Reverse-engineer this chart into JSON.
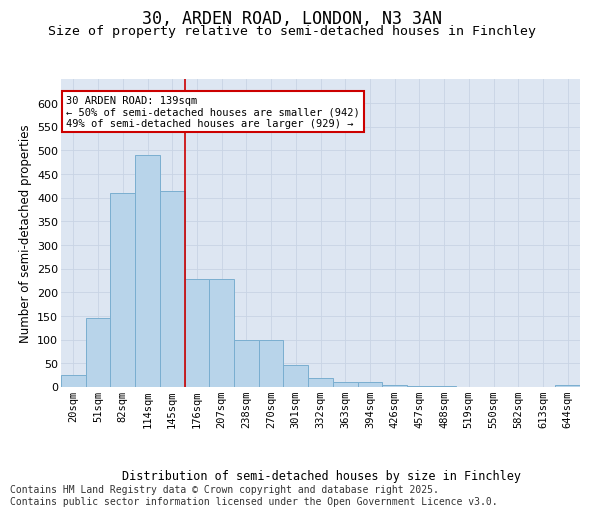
{
  "title_line1": "30, ARDEN ROAD, LONDON, N3 3AN",
  "title_line2": "Size of property relative to semi-detached houses in Finchley",
  "xlabel": "Distribution of semi-detached houses by size in Finchley",
  "ylabel": "Number of semi-detached properties",
  "categories": [
    "20sqm",
    "51sqm",
    "82sqm",
    "114sqm",
    "145sqm",
    "176sqm",
    "207sqm",
    "238sqm",
    "270sqm",
    "301sqm",
    "332sqm",
    "363sqm",
    "394sqm",
    "426sqm",
    "457sqm",
    "488sqm",
    "519sqm",
    "550sqm",
    "582sqm",
    "613sqm",
    "644sqm"
  ],
  "values": [
    25,
    145,
    410,
    490,
    415,
    228,
    228,
    100,
    100,
    47,
    18,
    10,
    10,
    5,
    2,
    1,
    0,
    0,
    0,
    0,
    5
  ],
  "bar_color": "#b8d4ea",
  "bar_edge_color": "#7aaed0",
  "bar_linewidth": 0.7,
  "vline_x_idx": 4.5,
  "vline_color": "#cc0000",
  "vline_linewidth": 1.2,
  "annotation_text": "30 ARDEN ROAD: 139sqm\n← 50% of semi-detached houses are smaller (942)\n49% of semi-detached houses are larger (929) →",
  "annotation_box_edge_color": "#cc0000",
  "annotation_fill": "#ffffff",
  "ylim_max": 650,
  "yticks": [
    0,
    50,
    100,
    150,
    200,
    250,
    300,
    350,
    400,
    450,
    500,
    550,
    600
  ],
  "grid_color": "#c8d4e4",
  "plot_bg_color": "#dde6f2",
  "footer_text": "Contains HM Land Registry data © Crown copyright and database right 2025.\nContains public sector information licensed under the Open Government Licence v3.0."
}
